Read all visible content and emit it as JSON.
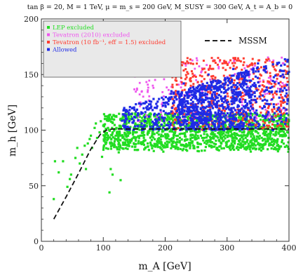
{
  "chart_data": {
    "type": "scatter",
    "title": "tan β = 20,  M = 1 TeV,  μ = m_s = 200 GeV,  M_SUSY = 300 GeV,  A_t = A_b = 0",
    "xlabel": "m_A [GeV]",
    "ylabel": "m_h [GeV]",
    "xlim": [
      0,
      400
    ],
    "ylim": [
      0,
      200
    ],
    "x_ticks": [
      0,
      100,
      200,
      300,
      400
    ],
    "y_ticks": [
      0,
      50,
      100,
      150,
      200
    ],
    "grid": false,
    "legend_placement": "top-left",
    "series": [
      {
        "name": "LEP excluded",
        "color": "#22dd22",
        "marker": "square",
        "sampled": true,
        "region": {
          "x": [
            20,
            400
          ],
          "y": [
            40,
            115
          ]
        },
        "points": [
          [
            20,
            38
          ],
          [
            22,
            72
          ],
          [
            28,
            62
          ],
          [
            35,
            72
          ],
          [
            42,
            49
          ],
          [
            46,
            56
          ],
          [
            48,
            60
          ],
          [
            55,
            75
          ],
          [
            58,
            84
          ],
          [
            62,
            70
          ],
          [
            66,
            78
          ],
          [
            70,
            86
          ],
          [
            72,
            65
          ],
          [
            75,
            88
          ],
          [
            78,
            92
          ],
          [
            80,
            95
          ],
          [
            82,
            84
          ],
          [
            86,
            102
          ],
          [
            88,
            106
          ],
          [
            90,
            93
          ],
          [
            94,
            98
          ],
          [
            96,
            108
          ],
          [
            98,
            76
          ],
          [
            100,
            104
          ],
          [
            104,
            96
          ],
          [
            106,
            110
          ],
          [
            108,
            112
          ],
          [
            110,
            44
          ],
          [
            112,
            65
          ],
          [
            115,
            60
          ],
          [
            120,
            95
          ],
          [
            125,
            80
          ],
          [
            128,
            55
          ],
          [
            135,
            88
          ],
          [
            140,
            102
          ],
          [
            145,
            110
          ],
          [
            160,
            95
          ],
          [
            175,
            105
          ],
          [
            190,
            90
          ],
          [
            210,
            100
          ],
          [
            230,
            112
          ],
          [
            250,
            92
          ],
          [
            270,
            106
          ],
          [
            290,
            98
          ],
          [
            310,
            108
          ],
          [
            330,
            93
          ],
          [
            350,
            103
          ],
          [
            370,
            96
          ],
          [
            385,
            110
          ],
          [
            398,
            85
          ]
        ]
      },
      {
        "name": "Tevatron (2010) excluded",
        "color": "#ee55ee",
        "marker": "square",
        "sampled": true,
        "region": {
          "x": [
            150,
            400
          ],
          "y": [
            110,
            165
          ]
        },
        "points": [
          [
            160,
            125
          ],
          [
            180,
            140
          ],
          [
            205,
            150
          ],
          [
            230,
            160
          ],
          [
            250,
            145
          ],
          [
            270,
            155
          ],
          [
            295,
            162
          ],
          [
            320,
            150
          ],
          [
            345,
            158
          ],
          [
            370,
            147
          ],
          [
            390,
            160
          ]
        ]
      },
      {
        "name": "Tevatron (10 fb⁻¹, eff = 1.5) excluded",
        "color": "#ff3b2f",
        "marker": "square",
        "sampled": true,
        "region": {
          "x": [
            210,
            400
          ],
          "y": [
            100,
            165
          ]
        },
        "points": [
          [
            215,
            130
          ],
          [
            240,
            145
          ],
          [
            265,
            152
          ],
          [
            285,
            138
          ],
          [
            305,
            156
          ],
          [
            325,
            142
          ],
          [
            345,
            160
          ],
          [
            360,
            130
          ],
          [
            380,
            150
          ],
          [
            395,
            140
          ]
        ]
      },
      {
        "name": "Allowed",
        "color": "#1f2be6",
        "marker": "square",
        "sampled": true,
        "region": {
          "x": [
            130,
            400
          ],
          "y": [
            100,
            165
          ]
        },
        "points": [
          [
            135,
            104
          ],
          [
            150,
            112
          ],
          [
            170,
            120
          ],
          [
            190,
            128
          ],
          [
            210,
            135
          ],
          [
            230,
            142
          ],
          [
            250,
            130
          ],
          [
            270,
            150
          ],
          [
            290,
            140
          ],
          [
            310,
            155
          ],
          [
            330,
            145
          ],
          [
            350,
            160
          ],
          [
            370,
            138
          ],
          [
            390,
            150
          ]
        ]
      },
      {
        "name": "MSSM",
        "color": "#000000",
        "style": "dashed",
        "x": [
          20,
          40,
          60,
          80,
          95,
          105,
          115,
          150,
          200,
          300,
          400
        ],
        "y": [
          20,
          40,
          61,
          83,
          96,
          100,
          101,
          101,
          101,
          101,
          101
        ]
      }
    ]
  }
}
